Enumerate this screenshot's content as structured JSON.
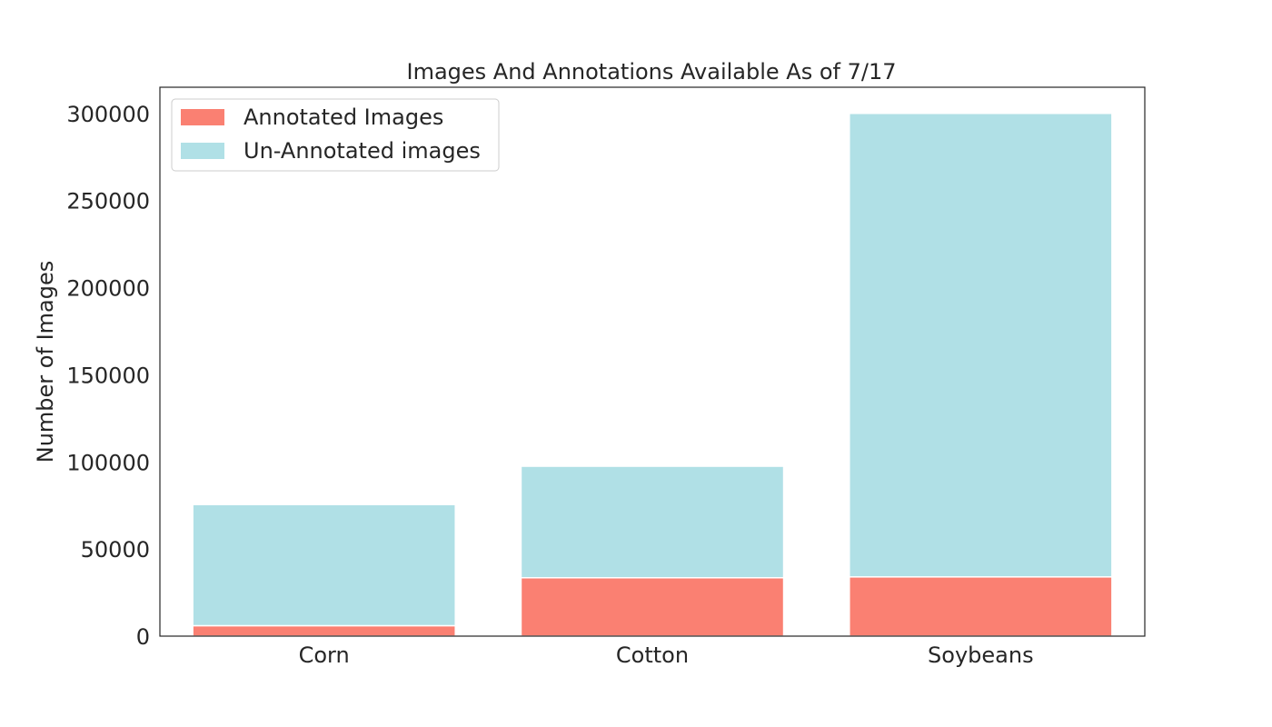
{
  "chart_data": {
    "type": "bar",
    "stacked": true,
    "title": "Images And Annotations Available As of 7/17",
    "xlabel": "",
    "ylabel": "Number of Images",
    "categories": [
      "Corn",
      "Cotton",
      "Soybeans"
    ],
    "series": [
      {
        "name": "Annotated Images",
        "values": [
          6000,
          33500,
          34000
        ],
        "color": "#fa8072"
      },
      {
        "name": "Un-Annotated images",
        "values": [
          69500,
          64000,
          266000
        ],
        "color": "#b0e0e6"
      }
    ],
    "ylim": [
      0,
      315000
    ],
    "yticks": [
      0,
      50000,
      100000,
      150000,
      200000,
      250000,
      300000
    ],
    "grid": false,
    "legend_position": "top-left"
  }
}
